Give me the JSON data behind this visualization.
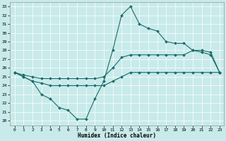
{
  "xlabel": "Humidex (Indice chaleur)",
  "background_color": "#c8eaea",
  "line_color": "#1a6b6b",
  "xlim": [
    -0.5,
    23.5
  ],
  "ylim": [
    19.5,
    33.5
  ],
  "xticks": [
    0,
    1,
    2,
    3,
    4,
    5,
    6,
    7,
    8,
    9,
    10,
    11,
    12,
    13,
    14,
    15,
    16,
    17,
    18,
    19,
    20,
    21,
    22,
    23
  ],
  "yticks": [
    20,
    21,
    22,
    23,
    24,
    25,
    26,
    27,
    28,
    29,
    30,
    31,
    32,
    33
  ],
  "curve1_x": [
    0,
    1,
    2,
    3,
    4,
    5,
    6,
    7,
    8,
    9,
    10,
    11,
    12,
    13,
    14,
    15,
    16,
    17,
    18,
    19,
    20,
    21,
    22,
    23
  ],
  "curve1_y": [
    25.5,
    25.0,
    24.5,
    23.0,
    22.5,
    21.5,
    21.2,
    20.2,
    20.2,
    22.5,
    24.5,
    28.0,
    32.0,
    33.0,
    31.0,
    30.5,
    30.2,
    29.0,
    28.8,
    28.8,
    28.0,
    27.8,
    27.5,
    25.5
  ],
  "curve2_x": [
    0,
    1,
    2,
    3,
    4,
    5,
    6,
    7,
    8,
    9,
    10,
    11,
    12,
    13,
    14,
    15,
    16,
    17,
    18,
    19,
    20,
    21,
    22,
    23
  ],
  "curve2_y": [
    25.5,
    25.2,
    25.0,
    24.8,
    24.8,
    24.8,
    24.8,
    24.8,
    24.8,
    24.8,
    25.0,
    26.0,
    27.2,
    27.5,
    27.5,
    27.5,
    27.5,
    27.5,
    27.5,
    27.5,
    28.0,
    28.0,
    27.8,
    25.5
  ],
  "curve3_x": [
    0,
    1,
    2,
    3,
    4,
    5,
    6,
    7,
    8,
    9,
    10,
    11,
    12,
    13,
    14,
    15,
    16,
    17,
    18,
    19,
    20,
    21,
    22,
    23
  ],
  "curve3_y": [
    25.5,
    25.0,
    24.5,
    24.3,
    24.0,
    24.0,
    24.0,
    24.0,
    24.0,
    24.0,
    24.0,
    24.5,
    25.0,
    25.5,
    25.5,
    25.5,
    25.5,
    25.5,
    25.5,
    25.5,
    25.5,
    25.5,
    25.5,
    25.5
  ]
}
